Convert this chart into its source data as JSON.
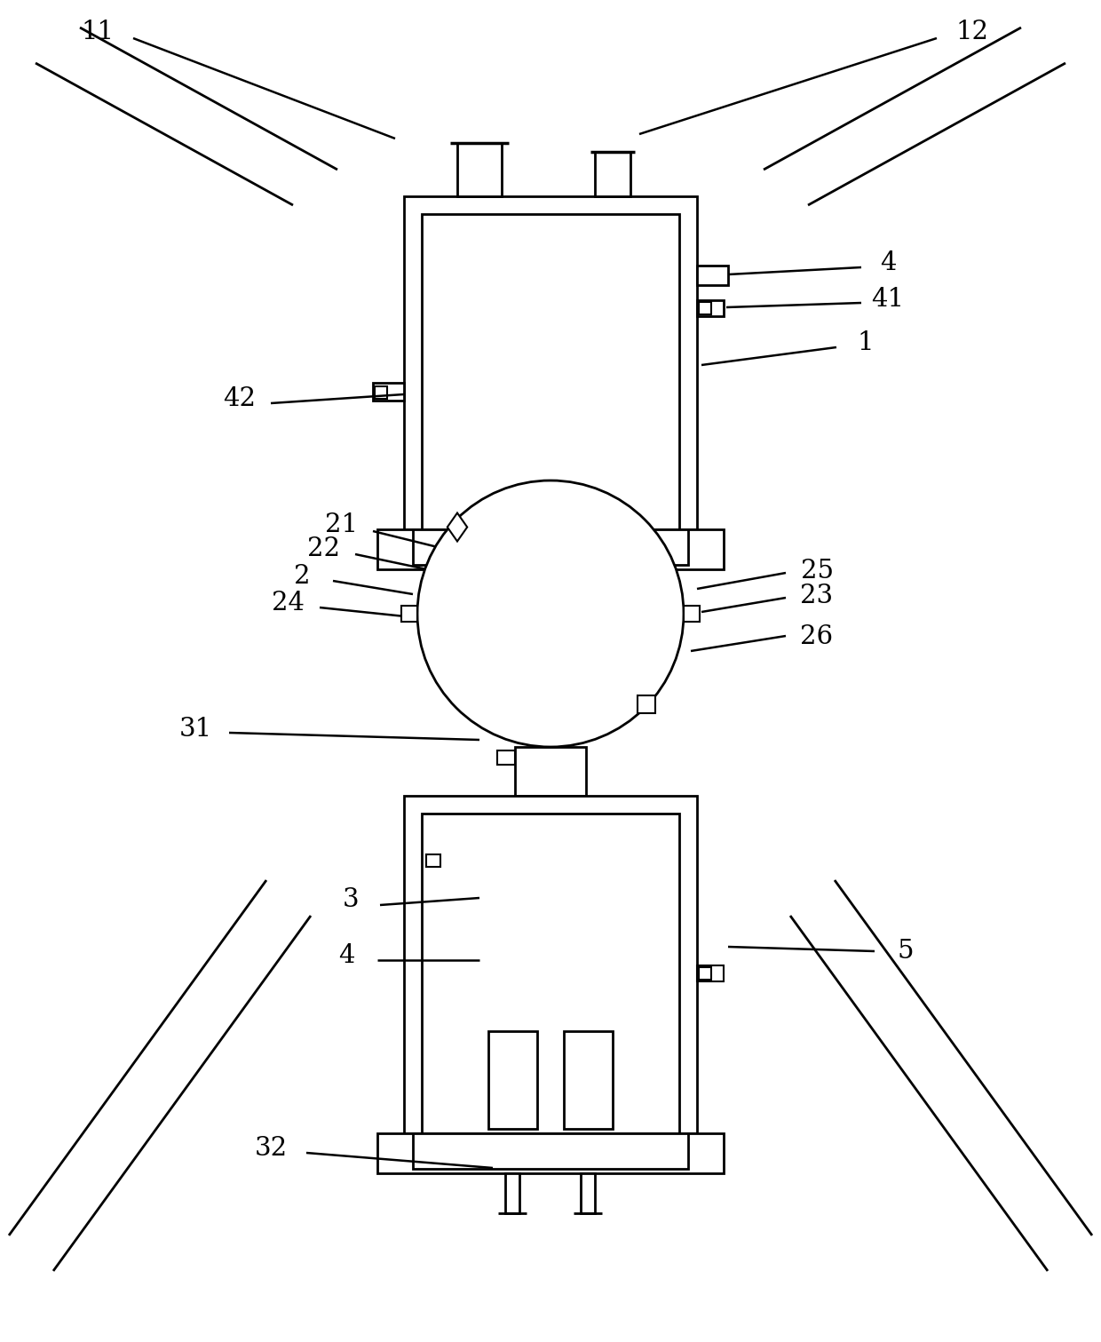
{
  "bg_color": "#ffffff",
  "line_color": "#000000",
  "lw": 2.0,
  "fig_width": 12.4,
  "fig_height": 15.11
}
